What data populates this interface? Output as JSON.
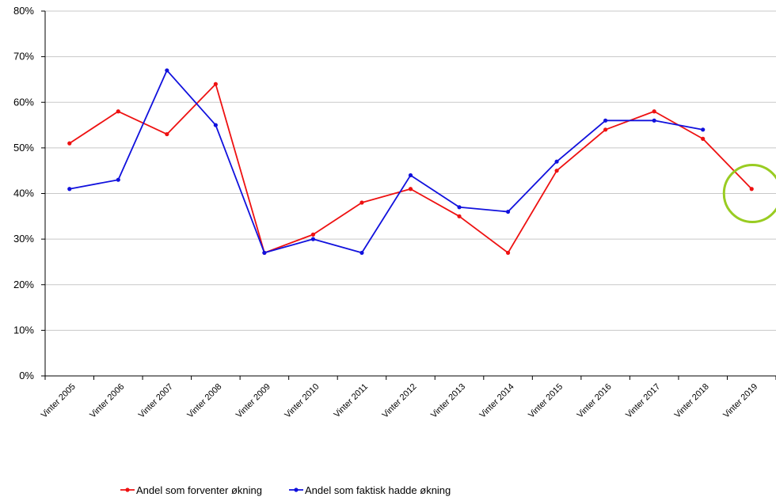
{
  "chart_data": {
    "type": "line",
    "categories": [
      "Vinter 2005",
      "Vinter 2006",
      "Vinter 2007",
      "Vinter 2008",
      "Vinter 2009",
      "Vinter 2010",
      "Vinter 2011",
      "Vinter 2012",
      "Vinter 2013",
      "Vinter 2014",
      "Vinter 2015",
      "Vinter 2016",
      "Vinter 2017",
      "Vinter 2018",
      "Vinter 2019"
    ],
    "series": [
      {
        "name": "Andel som forventer økning",
        "color": "#ee1111",
        "values": [
          51,
          58,
          53,
          64,
          27,
          31,
          38,
          41,
          35,
          27,
          45,
          54,
          58,
          52,
          41
        ]
      },
      {
        "name": "Andel som faktisk hadde økning",
        "color": "#1111dd",
        "values": [
          41,
          43,
          67,
          55,
          27,
          30,
          27,
          44,
          37,
          36,
          47,
          56,
          56,
          54,
          null
        ]
      }
    ],
    "ylim": [
      0,
      80
    ],
    "yticks": [
      "0%",
      "10%",
      "20%",
      "30%",
      "40%",
      "50%",
      "60%",
      "70%",
      "80%"
    ],
    "grid": true,
    "legend": "bottom",
    "highlight": {
      "category": "Vinter 2019",
      "value": 40,
      "color": "#99cc22",
      "shape": "circle"
    }
  }
}
